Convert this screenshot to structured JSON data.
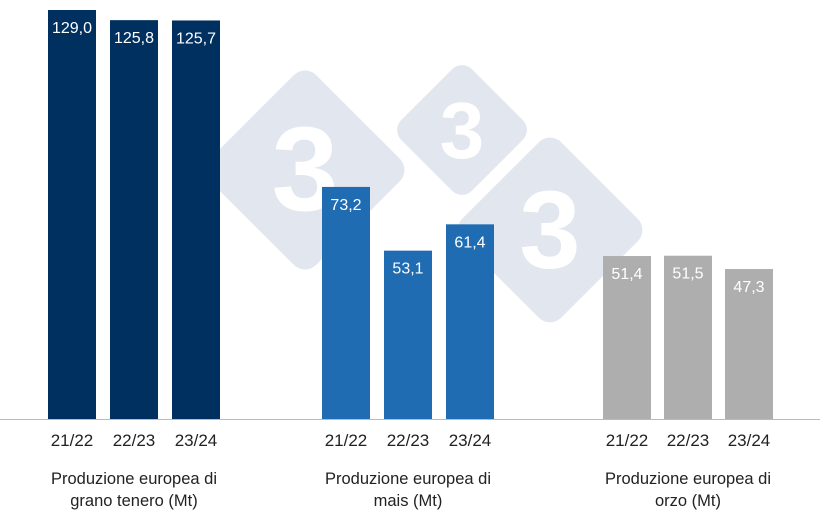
{
  "chart_data": {
    "type": "bar",
    "ylim": [
      0,
      129
    ],
    "grid": false,
    "watermark": "333",
    "groups": [
      {
        "label_lines": [
          "Produzione europea di",
          "grano tenero (Mt)"
        ],
        "color": "#003060",
        "categories": [
          "21/22",
          "22/23",
          "23/24"
        ],
        "values": [
          129.0,
          125.8,
          125.7
        ],
        "data_labels": [
          "129,0",
          "125,8",
          "125,7"
        ]
      },
      {
        "label_lines": [
          "Produzione europea di",
          "mais (Mt)"
        ],
        "color": "#1f6cb3",
        "categories": [
          "21/22",
          "22/23",
          "23/24"
        ],
        "values": [
          73.2,
          53.1,
          61.4
        ],
        "data_labels": [
          "73,2",
          "53,1",
          "61,4"
        ]
      },
      {
        "label_lines": [
          "Produzione europea di",
          "orzo (Mt)"
        ],
        "color": "#aeaeae",
        "categories": [
          "21/22",
          "22/23",
          "23/24"
        ],
        "values": [
          51.4,
          51.5,
          47.3
        ],
        "data_labels": [
          "51,4",
          "51,5",
          "47,3"
        ]
      }
    ]
  }
}
